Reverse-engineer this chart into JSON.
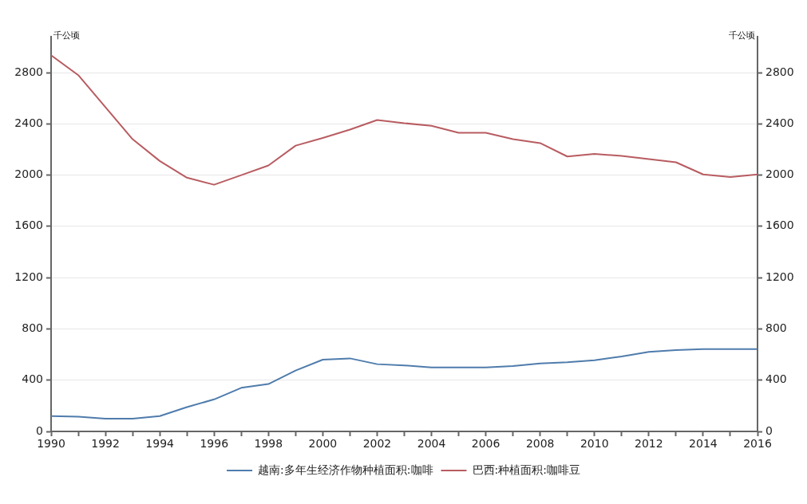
{
  "chart_data": {
    "type": "line",
    "ylabel": "千公顷",
    "y2label": "千公顷",
    "x": [
      1990,
      1991,
      1992,
      1993,
      1994,
      1995,
      1996,
      1997,
      1998,
      1999,
      2000,
      2001,
      2002,
      2003,
      2004,
      2005,
      2006,
      2007,
      2008,
      2009,
      2010,
      2011,
      2012,
      2013,
      2014,
      2015,
      2016
    ],
    "series": [
      {
        "name": "越南:多年生经济作物种植面积:咖啡",
        "color": "#4f7cac",
        "values": [
          120,
          115,
          100,
          100,
          120,
          190,
          250,
          340,
          370,
          475,
          560,
          570,
          525,
          515,
          500,
          500,
          500,
          510,
          530,
          540,
          555,
          585,
          620,
          635,
          643,
          643,
          643
        ]
      },
      {
        "name": "巴西:种植面积:咖啡豆",
        "color": "#b85c61",
        "values": [
          2935,
          2780,
          2530,
          2280,
          2110,
          1980,
          1925,
          2000,
          2075,
          2230,
          2290,
          2355,
          2430,
          2405,
          2385,
          2330,
          2330,
          2280,
          2250,
          2145,
          2165,
          2150,
          2125,
          2100,
          2005,
          1985,
          2005
        ]
      }
    ],
    "xlim": [
      1990,
      2016
    ],
    "xticks": [
      1990,
      {
        "value": 1991,
        "label": null
      },
      1992,
      {
        "value": 1993,
        "label": null
      },
      1994,
      {
        "value": 1995,
        "label": null
      },
      1996,
      {
        "value": 1997,
        "label": null
      },
      1998,
      {
        "value": 1999,
        "label": null
      },
      2000,
      {
        "value": 2001,
        "label": null
      },
      2002,
      {
        "value": 2003,
        "label": null
      },
      2004,
      {
        "value": 2005,
        "label": null
      },
      2006,
      {
        "value": 2007,
        "label": null
      },
      2008,
      {
        "value": 2009,
        "label": null
      },
      2010,
      {
        "value": 2011,
        "label": null
      },
      2012,
      {
        "value": 2013,
        "label": null
      },
      2014,
      {
        "value": 2015,
        "label": null
      },
      2016
    ],
    "ylim": [
      0,
      3080
    ],
    "yticks": [
      0,
      400,
      800,
      1200,
      1600,
      2000,
      2400,
      2800
    ],
    "y2lim": [
      0,
      3080
    ],
    "y2ticks": [
      0,
      400,
      800,
      1200,
      1600,
      2000,
      2400,
      2800
    ],
    "grid": "y",
    "legend": "bottom",
    "marker": "none",
    "line_style": "solid"
  }
}
